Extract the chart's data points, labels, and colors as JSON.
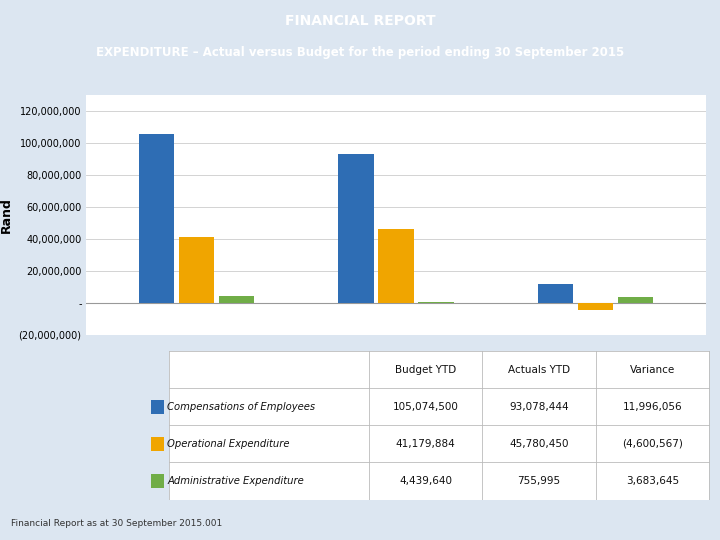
{
  "title_line1": "FINANCIAL REPORT",
  "title_line2": "EXPENDITURE – Actual versus Budget for the period ending 30 September 2015",
  "title_bg_color": "#3a3a9b",
  "title_text_color": "#ffffff",
  "ylabel": "Rand",
  "groups": [
    "Budget YTD",
    "Actuals YTD",
    "Variance"
  ],
  "categories": [
    "Compensations of Employees",
    "Operational Expenditure",
    "Administrative Expenditure"
  ],
  "cat_colors": [
    "#2e6db4",
    "#f0a500",
    "#70ad47"
  ],
  "values": [
    [
      105074500,
      41179884,
      4439640
    ],
    [
      93078444,
      45780450,
      755995
    ],
    [
      11996056,
      -4600567,
      3683645
    ]
  ],
  "ylim": [
    -20000000,
    130000000
  ],
  "yticks": [
    -20000000,
    0,
    20000000,
    40000000,
    60000000,
    80000000,
    100000000,
    120000000
  ],
  "ytick_labels": [
    "(20,000,000)",
    "-",
    "20,000,000",
    "40,000,000",
    "60,000,000",
    "80,000,000",
    "100,000,000",
    "120,000,000"
  ],
  "table_headers": [
    "",
    "Budget YTD",
    "Actuals YTD",
    "Variance"
  ],
  "table_rows": [
    [
      "Compensations of Employees",
      "105,074,500",
      "93,078,444",
      "11,996,056"
    ],
    [
      "Operational Expenditure",
      "41,179,884",
      "45,780,450",
      "(4,600,567)"
    ],
    [
      "Administrative Expenditure",
      "4,439,640",
      "755,995",
      "3,683,645"
    ]
  ],
  "footer_text": "Financial Report as at 30 September 2015.001",
  "bg_color": "#dce6f1",
  "chart_area_bg": "#dce6f1",
  "plot_bg_color": "#ffffff",
  "table_bg": "#ffffff"
}
